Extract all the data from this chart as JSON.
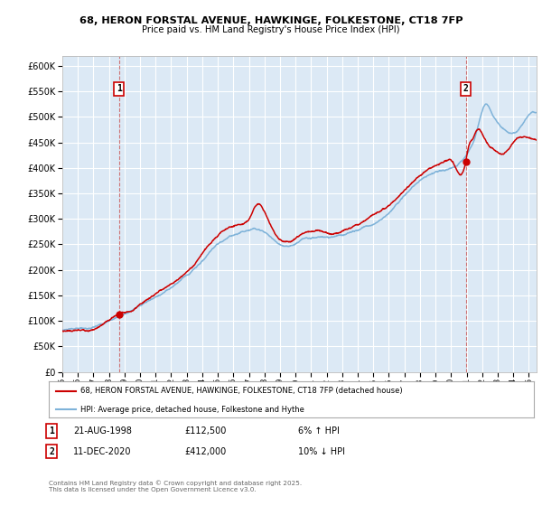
{
  "title_line1": "68, HERON FORSTAL AVENUE, HAWKINGE, FOLKESTONE, CT18 7FP",
  "title_line2": "Price paid vs. HM Land Registry's House Price Index (HPI)",
  "ylim": [
    0,
    620000
  ],
  "yticks": [
    0,
    50000,
    100000,
    150000,
    200000,
    250000,
    300000,
    350000,
    400000,
    450000,
    500000,
    550000,
    600000
  ],
  "bg_color": "#dce9f5",
  "grid_color": "#ffffff",
  "red_color": "#cc0000",
  "blue_color": "#7fb3d9",
  "marker1_x": 1998.646,
  "marker1_y": 112500,
  "marker2_x": 2020.944,
  "marker2_y": 412000,
  "vline1_x": 1998.646,
  "vline2_x": 2020.944,
  "legend_label_red": "68, HERON FORSTAL AVENUE, HAWKINGE, FOLKESTONE, CT18 7FP (detached house)",
  "legend_label_blue": "HPI: Average price, detached house, Folkestone and Hythe",
  "table_row1": [
    "1",
    "21-AUG-1998",
    "£112,500",
    "6% ↑ HPI"
  ],
  "table_row2": [
    "2",
    "11-DEC-2020",
    "£412,000",
    "10% ↓ HPI"
  ],
  "footnote": "Contains HM Land Registry data © Crown copyright and database right 2025.\nThis data is licensed under the Open Government Licence v3.0.",
  "xstart": 1995.0,
  "xend": 2025.5,
  "xtick_years": [
    1995,
    1996,
    1997,
    1998,
    1999,
    2000,
    2001,
    2002,
    2003,
    2004,
    2005,
    2006,
    2007,
    2008,
    2009,
    2010,
    2011,
    2012,
    2013,
    2014,
    2015,
    2016,
    2017,
    2018,
    2019,
    2020,
    2021,
    2022,
    2023,
    2024,
    2025
  ]
}
